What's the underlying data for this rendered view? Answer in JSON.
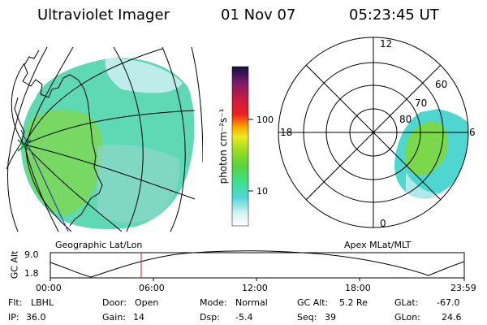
{
  "header": {
    "title": "Ultraviolet Imager",
    "date": "01 Nov 07",
    "time": "05:23:45 UT"
  },
  "colorbar": {
    "label": "photon cm⁻²s⁻¹",
    "ticks": [
      {
        "label": "100",
        "value": 100
      },
      {
        "label": "10",
        "value": 10
      }
    ]
  },
  "polar_plot": {
    "mlt_labels": [
      {
        "label": "12",
        "mlt": 12
      },
      {
        "label": "18",
        "mlt": 18
      },
      {
        "label": "6",
        "mlt": 6
      },
      {
        "label": "0",
        "mlt": 0
      }
    ],
    "mlat_labels": [
      {
        "label": "60",
        "mlat": 60
      },
      {
        "label": "70",
        "mlat": 70
      },
      {
        "label": "80",
        "mlat": 80
      }
    ]
  },
  "panel_titles": {
    "left": "Geographic Lat/Lon",
    "right": "Apex MLat/MLT"
  },
  "altitude_plot": {
    "ylabel": "GC Alt",
    "yticks": [
      "9.0",
      "1.8"
    ],
    "xticks": [
      "00:00",
      "06:00",
      "12:00",
      "18:00",
      "23:59"
    ]
  },
  "info_rows": [
    [
      {
        "label": "Flt:",
        "value": "LBHL"
      },
      {
        "label": "Door:",
        "value": "Open"
      },
      {
        "label": "Mode:",
        "value": "Normal"
      },
      {
        "label": "GC Alt:",
        "value": "5.2 Re"
      },
      {
        "label": "GLat:",
        "value": "-67.0"
      }
    ],
    [
      {
        "label": "IP:",
        "value": "36.0"
      },
      {
        "label": "Gain:",
        "value": "14"
      },
      {
        "label": "Dsp:",
        "value": "-5.4"
      },
      {
        "label": "Seq:",
        "value": "39"
      },
      {
        "label": "GLon:",
        "value": "24.6"
      }
    ]
  ]
}
